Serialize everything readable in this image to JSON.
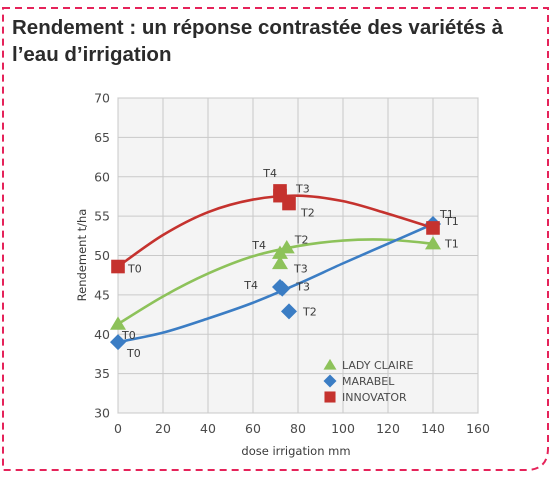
{
  "frame": {
    "border_color": "#e5235a"
  },
  "chart_data": {
    "type": "scatter",
    "title": "Rendement : un réponse contrastée des variétés à l’eau d’irrigation",
    "xlabel": "dose irrigation mm",
    "ylabel": "Rendement t/ha",
    "xlim": [
      0,
      160
    ],
    "ylim": [
      30,
      70
    ],
    "xticks": [
      "0",
      "20",
      "40",
      "60",
      "80",
      "100",
      "120",
      "140",
      "160"
    ],
    "yticks": [
      "30",
      "35",
      "40",
      "45",
      "50",
      "55",
      "60",
      "65",
      "70"
    ],
    "grid": true,
    "legend_position": "bottom-right",
    "series": [
      {
        "name": "LADY CLAIRE",
        "color": "#8dc25a",
        "marker": "triangle",
        "points": [
          {
            "x": 0,
            "y": 41.3,
            "label": "T0"
          },
          {
            "x": 72,
            "y": 50.3,
            "label": "T4"
          },
          {
            "x": 75,
            "y": 51.0,
            "label": "T2"
          },
          {
            "x": 72,
            "y": 49.0,
            "label": "T3"
          },
          {
            "x": 140,
            "y": 51.5,
            "label": "T1"
          }
        ],
        "trend": [
          [
            0,
            41.3
          ],
          [
            20,
            44.8
          ],
          [
            40,
            47.7
          ],
          [
            60,
            49.9
          ],
          [
            80,
            51.2
          ],
          [
            100,
            51.9
          ],
          [
            120,
            52.0
          ],
          [
            140,
            51.5
          ]
        ]
      },
      {
        "name": "MARABEL",
        "color": "#3b7dc4",
        "marker": "diamond",
        "points": [
          {
            "x": 0,
            "y": 39.0,
            "label": "T0"
          },
          {
            "x": 72,
            "y": 46.0,
            "label": "T4"
          },
          {
            "x": 73,
            "y": 45.8,
            "label": "T3"
          },
          {
            "x": 76,
            "y": 42.9,
            "label": "T2"
          },
          {
            "x": 140,
            "y": 54.0,
            "label": "T1"
          }
        ],
        "trend": [
          [
            0,
            39.0
          ],
          [
            20,
            40.2
          ],
          [
            40,
            42.0
          ],
          [
            60,
            44.0
          ],
          [
            80,
            46.4
          ],
          [
            100,
            49.0
          ],
          [
            120,
            51.5
          ],
          [
            140,
            54.0
          ]
        ]
      },
      {
        "name": "INNOVATOR",
        "color": "#c5322e",
        "marker": "square",
        "points": [
          {
            "x": 0,
            "y": 48.6,
            "label": "T0"
          },
          {
            "x": 72,
            "y": 58.2,
            "label": "T4"
          },
          {
            "x": 72,
            "y": 57.6,
            "label": "T3"
          },
          {
            "x": 76,
            "y": 56.6,
            "label": "T2"
          },
          {
            "x": 140,
            "y": 53.5,
            "label": "T1"
          }
        ],
        "trend": [
          [
            0,
            48.6
          ],
          [
            20,
            52.6
          ],
          [
            40,
            55.5
          ],
          [
            60,
            57.1
          ],
          [
            80,
            57.6
          ],
          [
            100,
            56.9
          ],
          [
            120,
            55.3
          ],
          [
            140,
            53.5
          ]
        ]
      }
    ]
  }
}
